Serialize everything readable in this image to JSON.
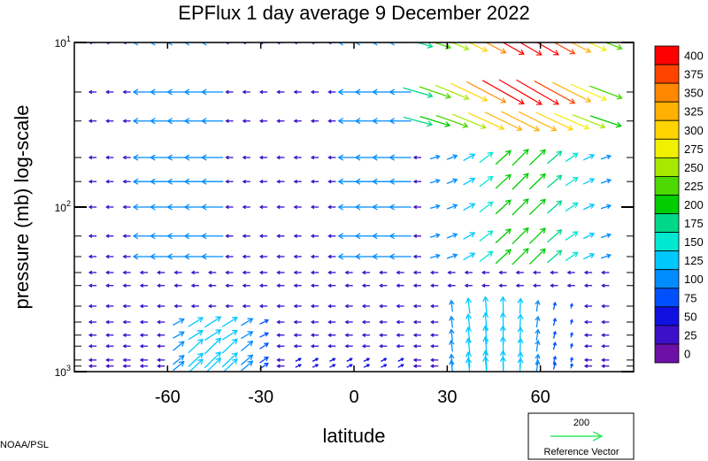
{
  "chart_data": {
    "type": "vector-field",
    "title": "EPFlux  1 day average  9 December  2022",
    "xlabel": "latitude",
    "ylabel": "pressure (mb)  log-scale",
    "xlim": [
      -90,
      90
    ],
    "ylim": [
      1000,
      10
    ],
    "yscale": "log",
    "x_ticks": [
      -60,
      -30,
      0,
      30,
      60
    ],
    "x_tick_labels": [
      "-60",
      "-30",
      "0",
      "30",
      "60"
    ],
    "y_ticks": [
      10,
      100,
      1000
    ],
    "y_tick_labels": [
      {
        "base": "10",
        "exp": "1"
      },
      {
        "base": "10",
        "exp": "2"
      },
      {
        "base": "10",
        "exp": "3"
      }
    ],
    "pressure_levels": [
      1000,
      925,
      850,
      700,
      600,
      500,
      400,
      300,
      250,
      200,
      150,
      100,
      70,
      50,
      30,
      20,
      10
    ],
    "colorbar": {
      "levels": [
        "400",
        "375",
        "350",
        "325",
        "300",
        "275",
        "250",
        "225",
        "200",
        "175",
        "150",
        "125",
        "100",
        "75",
        "50",
        "25",
        "0"
      ],
      "colors": [
        "#ff0000",
        "#ff4400",
        "#ff8800",
        "#ffb000",
        "#ffd400",
        "#f0f000",
        "#a8e800",
        "#4cd800",
        "#00cc00",
        "#00d888",
        "#00e8d0",
        "#00c8ff",
        "#008cff",
        "#0050ff",
        "#1010e0",
        "#3c10c8",
        "#6c10a8"
      ]
    },
    "reference_vector": {
      "value": "200",
      "label": "Reference Vector",
      "color": "#30e860"
    }
  },
  "credit": "NOAA/PSL"
}
